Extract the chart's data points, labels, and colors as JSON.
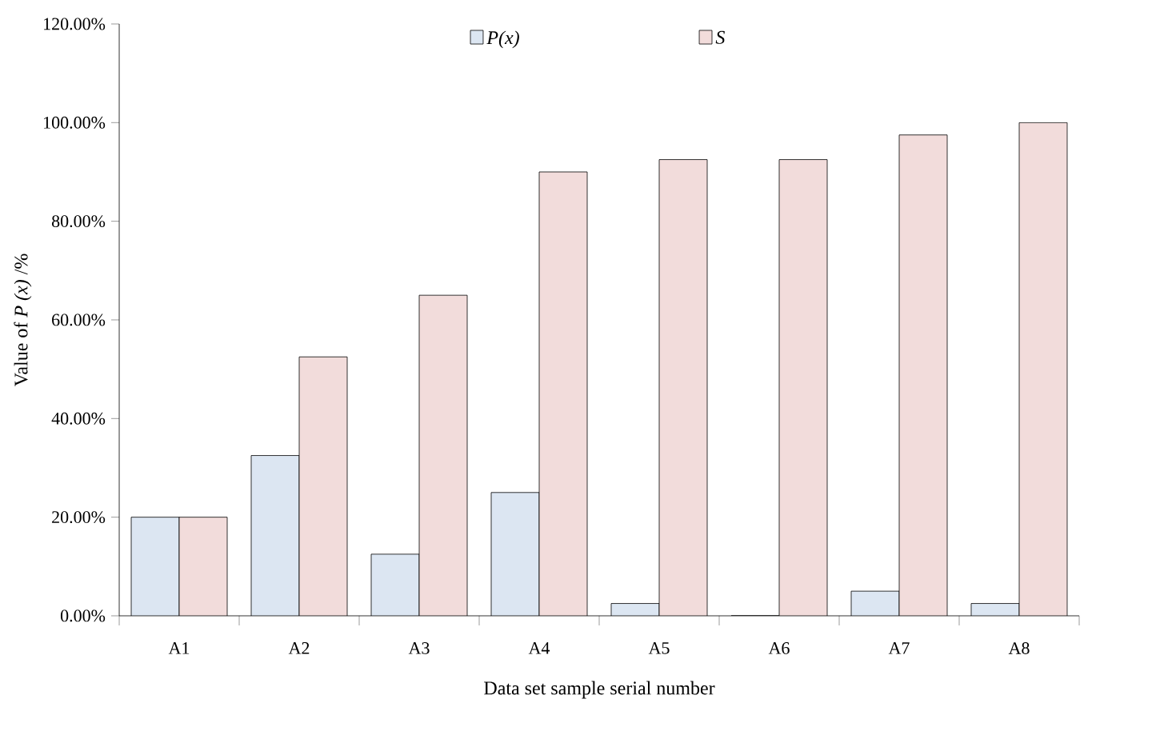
{
  "chart_data": {
    "type": "bar",
    "xlabel": "Data set sample serial number",
    "ylabel": "Value of *P (x)* /%",
    "categories": [
      "A1",
      "A2",
      "A3",
      "A4",
      "A5",
      "A6",
      "A7",
      "A8"
    ],
    "series": [
      {
        "name": "P(x)",
        "color": "#dce6f2",
        "values": [
          20,
          32.5,
          12.5,
          25,
          2.5,
          0,
          5,
          2.5
        ]
      },
      {
        "name": "S",
        "color": "#f2dcdb",
        "values": [
          20,
          52.5,
          65,
          90,
          92.5,
          92.5,
          97.5,
          100
        ]
      }
    ],
    "ylim": [
      0,
      120
    ],
    "yticks": [
      {
        "value": 0,
        "label": "0.00%"
      },
      {
        "value": 20,
        "label": "20.00%"
      },
      {
        "value": 40,
        "label": "40.00%"
      },
      {
        "value": 60,
        "label": "60.00%"
      },
      {
        "value": 80,
        "label": "80.00%"
      },
      {
        "value": 100,
        "label": "100.00%"
      },
      {
        "value": 120,
        "label": "120.00%"
      }
    ],
    "legend": "top"
  }
}
